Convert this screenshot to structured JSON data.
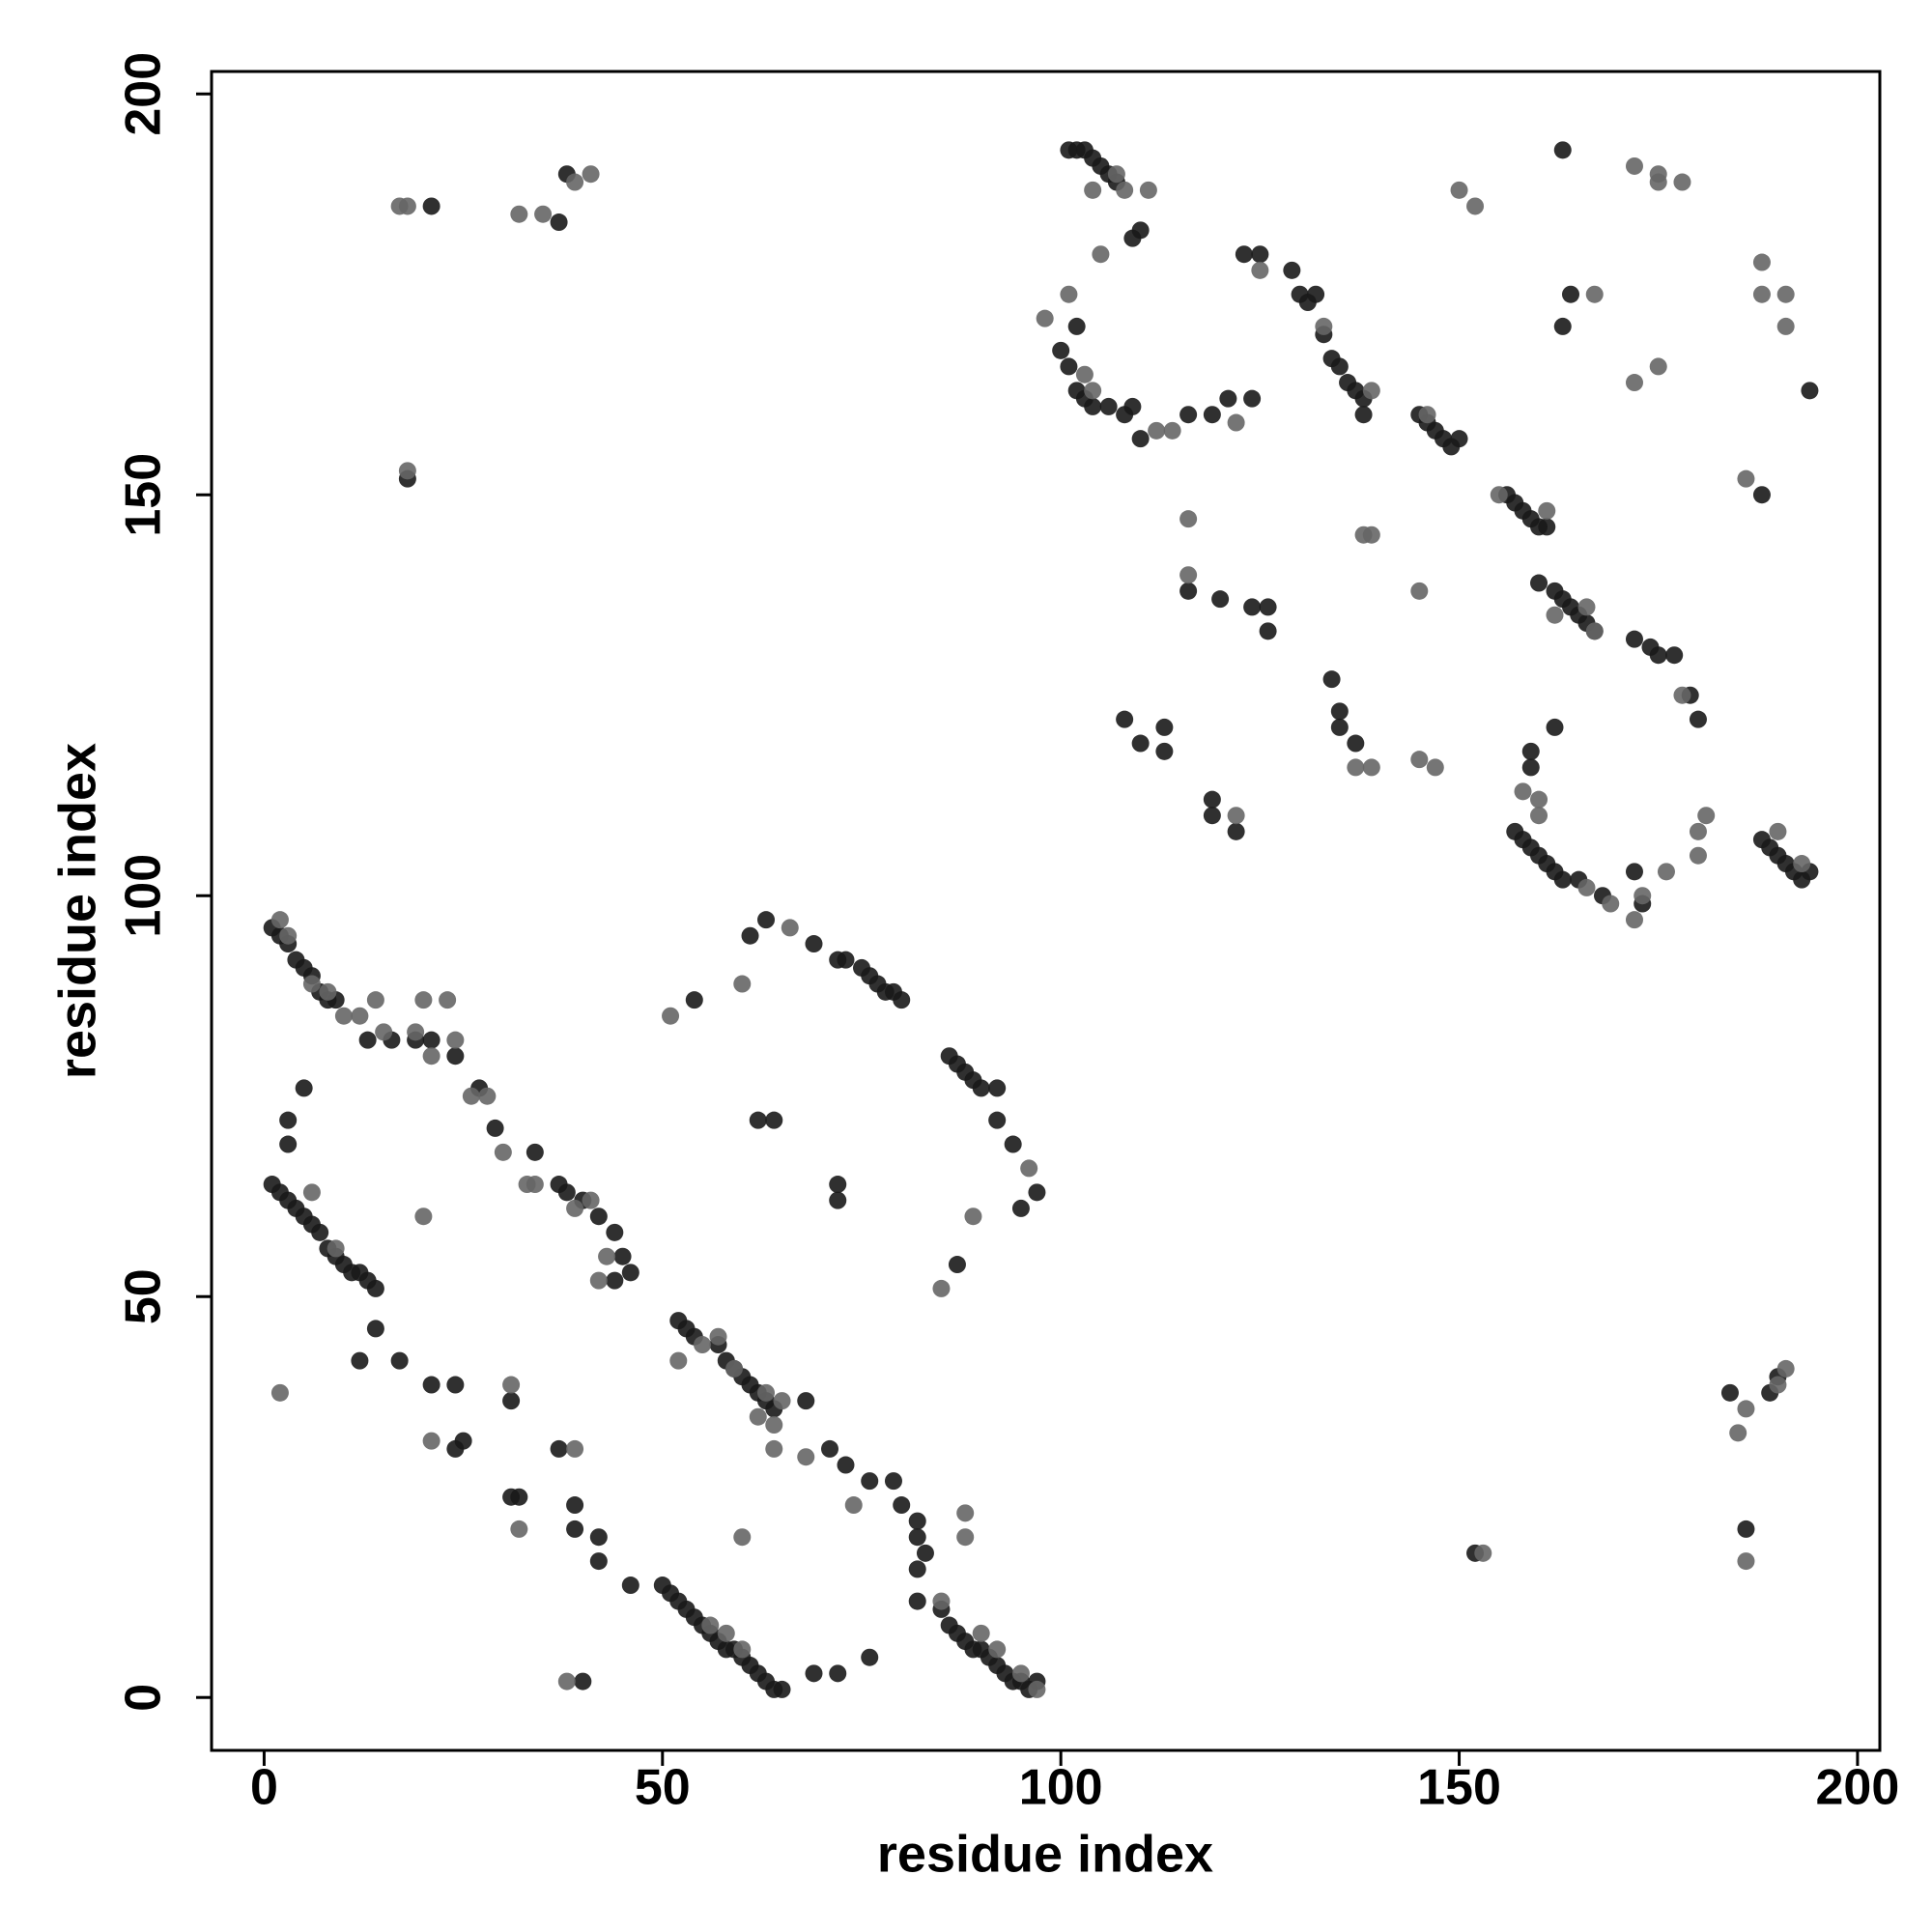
{
  "chart_data": {
    "type": "scatter",
    "xlabel": "residue index",
    "ylabel": "residue index",
    "xlim": [
      -6.6,
      202.8
    ],
    "ylim": [
      -6.6,
      202.8
    ],
    "xticks": [
      0,
      50,
      100,
      150,
      200
    ],
    "yticks": [
      0,
      50,
      100,
      150,
      200
    ],
    "grid": false,
    "series": [
      {
        "color": "#1a1a1a",
        "x": [
          1,
          2,
          3,
          4,
          5,
          6,
          7,
          8,
          9,
          13,
          16,
          19,
          21,
          24,
          27,
          29,
          34,
          37,
          38,
          40,
          42,
          44,
          45,
          46,
          44,
          1,
          2,
          3,
          4,
          5,
          6,
          7,
          8,
          9,
          10,
          11,
          12,
          13,
          14,
          14,
          52,
          53,
          54,
          57,
          58,
          59,
          60,
          61,
          62,
          63,
          64,
          68,
          71,
          73,
          76,
          79,
          80,
          82,
          82,
          83,
          82,
          82,
          50,
          51,
          52,
          53,
          54,
          55,
          56,
          57,
          58,
          59,
          60,
          61,
          62,
          63,
          64,
          65,
          85,
          86,
          87,
          88,
          89,
          90,
          91,
          92,
          93,
          94,
          95,
          96,
          97,
          54,
          61,
          63,
          69,
          72,
          73,
          75,
          76,
          77,
          78,
          79,
          80,
          86,
          87,
          88,
          89,
          90,
          92,
          92,
          94,
          95,
          97,
          3,
          5,
          3,
          12,
          17,
          21,
          24,
          24,
          25,
          31,
          31,
          32,
          37,
          40,
          39,
          39,
          42,
          42,
          46,
          62,
          64,
          72,
          72,
          69,
          72,
          76,
          87,
          101,
          102,
          103,
          104,
          105,
          106,
          107,
          109,
          110,
          102,
          100,
          101,
          102,
          103,
          104,
          106,
          108,
          109,
          110,
          116,
          119,
          121,
          124,
          123,
          125,
          129,
          130,
          131,
          132,
          133,
          134,
          135,
          136,
          137,
          138,
          138,
          145,
          146,
          147,
          148,
          149,
          150,
          156,
          157,
          158,
          159,
          160,
          161,
          160,
          162,
          163,
          164,
          165,
          166,
          167,
          172,
          174,
          175,
          177,
          179,
          180,
          157,
          158,
          159,
          160,
          161,
          162,
          163,
          165,
          168,
          172,
          173,
          159,
          159,
          162,
          188,
          189,
          190,
          191,
          192,
          193,
          194,
          108,
          110,
          113,
          113,
          119,
          119,
          122,
          116,
          120,
          124,
          126,
          126,
          134,
          135,
          135,
          137,
          163,
          164,
          194,
          188,
          190,
          189,
          184,
          186,
          152,
          21,
          38,
          37,
          18,
          163
        ],
        "y": [
          96,
          95,
          94,
          92,
          91,
          90,
          88,
          87,
          87,
          82,
          82,
          82,
          82,
          80,
          76,
          71,
          68,
          64,
          63,
          62,
          60,
          58,
          55,
          53,
          52,
          64,
          63,
          62,
          61,
          60,
          59,
          58,
          56,
          55,
          54,
          53,
          53,
          52,
          51,
          46,
          47,
          46,
          45,
          44,
          42,
          41,
          40,
          39,
          38,
          37,
          36,
          37,
          31,
          29,
          27,
          27,
          24,
          22,
          20,
          18,
          16,
          12,
          14,
          13,
          12,
          11,
          10,
          9,
          8,
          7,
          6,
          6,
          5,
          4,
          3,
          2,
          1,
          1,
          11,
          9,
          8,
          7,
          6,
          6,
          5,
          4,
          3,
          2,
          2,
          1,
          2,
          87,
          95,
          97,
          94,
          92,
          92,
          91,
          90,
          89,
          88,
          88,
          87,
          80,
          79,
          78,
          77,
          76,
          76,
          72,
          69,
          61,
          63,
          72,
          76,
          69,
          42,
          42,
          39,
          39,
          31,
          32,
          37,
          25,
          25,
          31,
          2,
          24,
          21,
          20,
          17,
          14,
          72,
          72,
          64,
          62,
          3,
          3,
          5,
          54,
          193,
          193,
          193,
          192,
          191,
          190,
          189,
          182,
          183,
          171,
          168,
          166,
          163,
          162,
          161,
          161,
          160,
          161,
          157,
          160,
          160,
          162,
          162,
          180,
          180,
          178,
          175,
          174,
          175,
          170,
          167,
          166,
          164,
          163,
          162,
          160,
          160,
          159,
          158,
          157,
          156,
          157,
          150,
          149,
          148,
          147,
          146,
          146,
          139,
          138,
          137,
          136,
          135,
          134,
          133,
          132,
          131,
          130,
          130,
          125,
          122,
          108,
          107,
          106,
          105,
          104,
          103,
          102,
          102,
          100,
          103,
          99,
          116,
          118,
          121,
          107,
          106,
          105,
          104,
          103,
          102,
          103,
          122,
          119,
          121,
          118,
          112,
          110,
          108,
          138,
          137,
          136,
          136,
          133,
          127,
          123,
          121,
          119,
          193,
          175,
          163,
          150,
          40,
          38,
          38,
          21,
          18,
          186,
          190,
          184,
          152,
          171
        ]
      },
      {
        "color": "#666666",
        "x": [
          2,
          20,
          20,
          23,
          21,
          31,
          32,
          33,
          39,
          38,
          42,
          51,
          60,
          66,
          60,
          64,
          64,
          68,
          74,
          85,
          89,
          96,
          88,
          88,
          52,
          116,
          116,
          122,
          114,
          105,
          111,
          98,
          101,
          145,
          138,
          139,
          137,
          139,
          145,
          147,
          150,
          152,
          172,
          175,
          175,
          178,
          167,
          172,
          175,
          188,
          188,
          191,
          191,
          186,
          185,
          186,
          191,
          153,
          17,
          18,
          32,
          35,
          39,
          41,
          18,
          176,
          178,
          181,
          180,
          158,
          166,
          172,
          15,
          21,
          26,
          30,
          6,
          8,
          10,
          12,
          14,
          58,
          56,
          90,
          92,
          95,
          97,
          2,
          3,
          6,
          9,
          57,
          63,
          65,
          85,
          60,
          155,
          161,
          146,
          104,
          107,
          108,
          160,
          160,
          190,
          193,
          173,
          169,
          104,
          103,
          112,
          122,
          125,
          133,
          139,
          162,
          166,
          167,
          180,
          190,
          186,
          19,
          28,
          34,
          39,
          41,
          43,
          24,
          55,
          59,
          62
        ],
        "y": [
          38,
          60,
          87,
          87,
          32,
          39,
          21,
          64,
          31,
          2,
          52,
          85,
          89,
          96,
          20,
          34,
          31,
          30,
          24,
          51,
          60,
          66,
          23,
          20,
          42,
          147,
          140,
          159,
          158,
          180,
          188,
          172,
          175,
          138,
          145,
          145,
          116,
          116,
          117,
          116,
          188,
          186,
          191,
          190,
          189,
          189,
          175,
          164,
          166,
          179,
          175,
          175,
          171,
          152,
          33,
          17,
          41,
          18,
          186,
          186,
          185,
          185,
          189,
          190,
          153,
          103,
          125,
          110,
          105,
          113,
          101,
          97,
          83,
          80,
          75,
          68,
          89,
          88,
          85,
          85,
          87,
          8,
          9,
          8,
          6,
          3,
          1,
          97,
          95,
          63,
          56,
          45,
          38,
          37,
          12,
          6,
          150,
          148,
          160,
          188,
          190,
          188,
          112,
          110,
          108,
          104,
          100,
          99,
          163,
          165,
          158,
          110,
          178,
          171,
          163,
          135,
          136,
          133,
          108,
          39,
          36,
          83,
          75,
          64,
          61,
          62,
          55,
          82,
          44,
          41,
          35
        ]
      }
    ]
  }
}
